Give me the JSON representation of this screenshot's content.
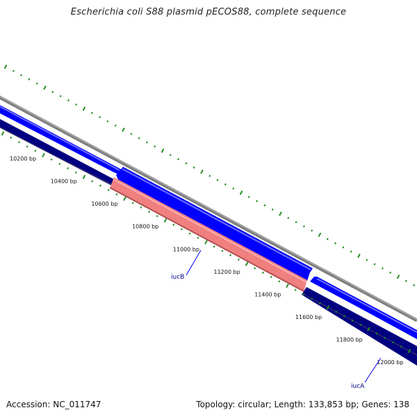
{
  "title": "Escherichia coli S88 plasmid pECOS88, complete sequence",
  "footer": {
    "accession": "Accession: NC_011747",
    "info": "Topology: circular; Length: 133,853 bp; Genes: 138"
  },
  "colors": {
    "outer_ring": "#808080",
    "forward_gene": "#0000ff",
    "reverse_gene": "#000080",
    "highlight_gene": "#f08080",
    "ticks": "#228b22",
    "gene_label": "#00008b",
    "bp_label": "#111111"
  },
  "bp_labels": [
    "10200 bp",
    "10400 bp",
    "10600 bp",
    "10800 bp",
    "11000 bp",
    "11200 bp",
    "11400 bp",
    "11600 bp",
    "11800 bp",
    "12000 bp"
  ],
  "genes": [
    {
      "name": "iucB"
    },
    {
      "name": "iucA"
    }
  ]
}
